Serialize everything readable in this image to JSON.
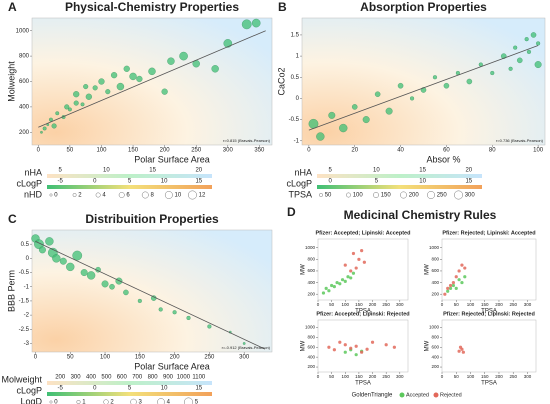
{
  "chart_data": [
    {
      "type": "scatter",
      "panel": "A",
      "title": "Physical-Chemistry Properties",
      "x_label": "Polar Surface Area",
      "y_label": "Molweight",
      "annotation": "r=0.815 (Bravais-Pearson)",
      "xlim": [
        -10,
        370
      ],
      "ylim": [
        100,
        1100
      ],
      "xticks": [
        0,
        50,
        100,
        150,
        200,
        250,
        300,
        350
      ],
      "yticks": [
        200,
        400,
        600,
        800,
        1000
      ],
      "series": [
        {
          "color": "#3fbf74",
          "x": [
            5,
            10,
            15,
            20,
            25,
            30,
            40,
            45,
            50,
            60,
            60,
            70,
            75,
            80,
            90,
            100,
            110,
            120,
            130,
            140,
            150,
            160,
            180,
            200,
            210,
            230,
            250,
            280,
            300,
            330,
            345
          ],
          "values": [
            200,
            230,
            260,
            300,
            250,
            350,
            320,
            400,
            380,
            430,
            500,
            420,
            560,
            480,
            550,
            600,
            520,
            650,
            560,
            700,
            640,
            620,
            680,
            520,
            760,
            800,
            740,
            700,
            900,
            1050,
            1060
          ],
          "sizes": [
            0,
            2,
            0,
            2,
            4,
            2,
            2,
            4,
            2,
            4,
            6,
            2,
            4,
            6,
            4,
            6,
            4,
            6,
            8,
            6,
            8,
            6,
            8,
            6,
            8,
            10,
            8,
            8,
            10,
            12,
            10
          ]
        }
      ],
      "trend_line": {
        "x": [
          0,
          360
        ],
        "values": [
          240,
          1000
        ]
      },
      "legends": [
        {
          "kind": "color",
          "label": "nHA",
          "ticks": [
            5,
            10,
            15,
            20
          ],
          "colors": [
            "#fde2c4",
            "#bdf0c8",
            "#c6e4fb"
          ]
        },
        {
          "kind": "color",
          "label": "cLogP",
          "ticks": [
            -5,
            0,
            5,
            10,
            15
          ],
          "colors": [
            "#3fbf74",
            "#f3e07a",
            "#f2a15a"
          ]
        },
        {
          "kind": "size",
          "label": "nHD",
          "ticks": [
            0,
            2,
            4,
            6,
            8,
            10,
            12
          ]
        }
      ]
    },
    {
      "type": "scatter",
      "panel": "B",
      "title": "Absorption Properties",
      "x_label": "Absor %",
      "y_label": "CaCo2",
      "annotation": "r=0.736 (Bravais-Pearson)",
      "xlim": [
        -3,
        103
      ],
      "ylim": [
        -1.1,
        1.9
      ],
      "xticks": [
        0,
        20,
        40,
        60,
        80,
        100
      ],
      "yticks": [
        -1,
        -0.5,
        0,
        0.5,
        1,
        1.5
      ],
      "series": [
        {
          "color": "#3fbf74",
          "x": [
            2,
            5,
            10,
            15,
            20,
            25,
            30,
            35,
            40,
            45,
            50,
            55,
            60,
            65,
            70,
            75,
            80,
            85,
            88,
            90,
            92,
            95,
            96,
            98,
            100,
            100
          ],
          "values": [
            -0.6,
            -0.9,
            -0.4,
            -0.7,
            -0.2,
            -0.5,
            0.1,
            -0.3,
            0.3,
            0.0,
            0.2,
            0.5,
            0.3,
            0.6,
            0.4,
            0.8,
            0.6,
            1.0,
            0.7,
            1.2,
            0.9,
            1.4,
            1.1,
            1.5,
            1.3,
            0.8
          ],
          "sizes": [
            250,
            200,
            150,
            200,
            100,
            150,
            100,
            150,
            100,
            50,
            100,
            50,
            100,
            50,
            100,
            50,
            50,
            100,
            50,
            50,
            100,
            50,
            50,
            100,
            50,
            150
          ]
        }
      ],
      "trend_line": {
        "x": [
          0,
          100
        ],
        "values": [
          -0.75,
          1.25
        ]
      },
      "legends": [
        {
          "kind": "color",
          "label": "nHA",
          "ticks": [
            5,
            10,
            15,
            20
          ],
          "colors": [
            "#fde2c4",
            "#bdf0c8",
            "#c6e4fb"
          ]
        },
        {
          "kind": "color",
          "label": "cLogP",
          "ticks": [
            0,
            5,
            10,
            15
          ],
          "colors": [
            "#3fbf74",
            "#f3e07a",
            "#f2a15a"
          ]
        },
        {
          "kind": "size",
          "label": "TPSA",
          "ticks": [
            50,
            100,
            150,
            200,
            250,
            300
          ]
        }
      ]
    },
    {
      "type": "scatter",
      "panel": "C",
      "title": "Distribuition Properties",
      "x_label": "Polar Surface Area",
      "y_label": "BBB Perm",
      "annotation": "r=-0.912 (Bravais-Pearson)",
      "xlim": [
        -5,
        340
      ],
      "ylim": [
        -3.3,
        1.0
      ],
      "xticks": [
        0,
        50,
        100,
        150,
        200,
        250,
        300
      ],
      "yticks": [
        0.5,
        0,
        -0.5,
        -1,
        -1.5,
        -2,
        -2.5,
        -3
      ],
      "series": [
        {
          "color": "#3fbf74",
          "x": [
            0,
            5,
            10,
            20,
            25,
            30,
            40,
            50,
            60,
            70,
            80,
            90,
            100,
            110,
            120,
            130,
            150,
            170,
            180,
            200,
            220,
            250,
            280,
            300
          ],
          "values": [
            0.7,
            0.5,
            0.3,
            0.6,
            0.2,
            0.0,
            -0.1,
            -0.3,
            0.1,
            -0.5,
            -0.6,
            -0.4,
            -0.9,
            -1.0,
            -0.8,
            -1.2,
            -1.5,
            -1.4,
            -1.8,
            -1.9,
            -2.1,
            -2.4,
            -2.6,
            -3.0
          ],
          "sizes": [
            4,
            5,
            3,
            4,
            5,
            4,
            3,
            4,
            5,
            3,
            4,
            2,
            3,
            2,
            3,
            2,
            1,
            2,
            1,
            1,
            1,
            1,
            0,
            0
          ]
        }
      ],
      "trend_line": {
        "x": [
          0,
          330
        ],
        "values": [
          0.6,
          -3.2
        ]
      },
      "legends": [
        {
          "kind": "color",
          "label": "Molweight",
          "ticks": [
            200,
            300,
            400,
            500,
            600,
            700,
            800,
            900,
            1000,
            1100
          ],
          "colors": [
            "#fde2c4",
            "#bdf0c8",
            "#c6e4fb"
          ]
        },
        {
          "kind": "color",
          "label": "cLogP",
          "ticks": [
            -5,
            0,
            5,
            10,
            15
          ],
          "colors": [
            "#3fbf74",
            "#f3e07a",
            "#f2a15a"
          ]
        },
        {
          "kind": "size",
          "label": "LogD",
          "ticks": [
            0,
            1,
            2,
            3,
            4,
            5
          ]
        }
      ]
    },
    {
      "type": "scatter-grid",
      "panel": "D",
      "title": "Medicinal Chemistry Rules",
      "x_label": "TPSA",
      "y_label": "MW",
      "legend_title": "GoldenTriangle",
      "xlim": [
        0,
        330
      ],
      "ylim": [
        100,
        1150
      ],
      "xticks": [
        0,
        50,
        100,
        150,
        200,
        250,
        300
      ],
      "yticks": [
        200,
        400,
        600,
        800,
        1000
      ],
      "subplots": [
        {
          "title": "Pfizer: Accepted; Lipinski: Accepted",
          "series": [
            {
              "name": "Accepted",
              "color": "#5cc85c",
              "x": [
                20,
                30,
                40,
                50,
                60,
                70,
                80,
                90,
                100,
                110,
                120,
                130
              ],
              "values": [
                220,
                300,
                260,
                350,
                330,
                400,
                380,
                450,
                420,
                500,
                480,
                560
              ]
            },
            {
              "name": "Rejected",
              "color": "#e2685a",
              "x": [
                100,
                120,
                130,
                140,
                150,
                160,
                170
              ],
              "values": [
                700,
                600,
                900,
                650,
                800,
                950,
                750
              ]
            }
          ]
        },
        {
          "title": "Pfizer: Rejected; Lipinski: Accepted",
          "series": [
            {
              "name": "Accepted",
              "color": "#5cc85c",
              "x": [
                20,
                30,
                40,
                50,
                60,
                70,
                80
              ],
              "values": [
                250,
                300,
                350,
                300,
                450,
                400,
                500
              ]
            },
            {
              "name": "Rejected",
              "color": "#e2685a",
              "x": [
                10,
                20,
                30,
                40,
                50,
                60,
                70,
                80
              ],
              "values": [
                200,
                300,
                350,
                400,
                500,
                600,
                700,
                650
              ]
            }
          ]
        },
        {
          "title": "Pfizer: Accepted; Lipinski: Rejected",
          "series": [
            {
              "name": "Accepted",
              "color": "#5cc85c",
              "x": [
                100,
                120,
                140,
                160
              ],
              "values": [
                500,
                550,
                450,
                520
              ]
            },
            {
              "name": "Rejected",
              "color": "#e2685a",
              "x": [
                40,
                60,
                80,
                100,
                120,
                140,
                160,
                180,
                200,
                250,
                280
              ],
              "values": [
                600,
                550,
                700,
                650,
                580,
                620,
                500,
                560,
                700,
                650,
                600
              ]
            }
          ]
        },
        {
          "title": "Pfizer: Rejected; Lipinski: Rejected",
          "series": [
            {
              "name": "Rejected",
              "color": "#e2685a",
              "x": [
                60,
                65,
                70,
                75
              ],
              "values": [
                520,
                600,
                560,
                500
              ]
            }
          ]
        }
      ]
    }
  ]
}
